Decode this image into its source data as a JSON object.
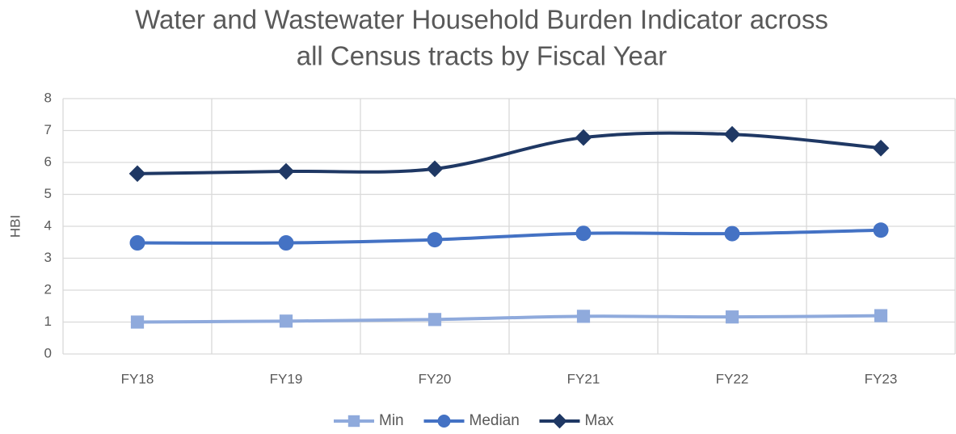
{
  "chart_data": {
    "type": "line",
    "title": [
      "Water and Wastewater Household Burden Indicator across",
      "all Census tracts by Fiscal Year"
    ],
    "y_label": "HBI",
    "categories": [
      "FY18",
      "FY19",
      "FY20",
      "FY21",
      "FY22",
      "FY23"
    ],
    "series": [
      {
        "name": "Min",
        "color": "#8faadc",
        "marker": "square",
        "values": [
          1.0,
          1.03,
          1.08,
          1.18,
          1.16,
          1.2
        ]
      },
      {
        "name": "Median",
        "color": "#4472c4",
        "marker": "circle",
        "values": [
          3.48,
          3.48,
          3.58,
          3.78,
          3.77,
          3.88
        ]
      },
      {
        "name": "Max",
        "color": "#1f3864",
        "marker": "diamond",
        "values": [
          5.65,
          5.72,
          5.8,
          6.78,
          6.88,
          6.45
        ]
      }
    ],
    "ylim": [
      0,
      8
    ],
    "yticks": [
      0,
      1,
      2,
      3,
      4,
      5,
      6,
      7,
      8
    ],
    "grid": true,
    "smooth": true,
    "legend": "bottom"
  }
}
